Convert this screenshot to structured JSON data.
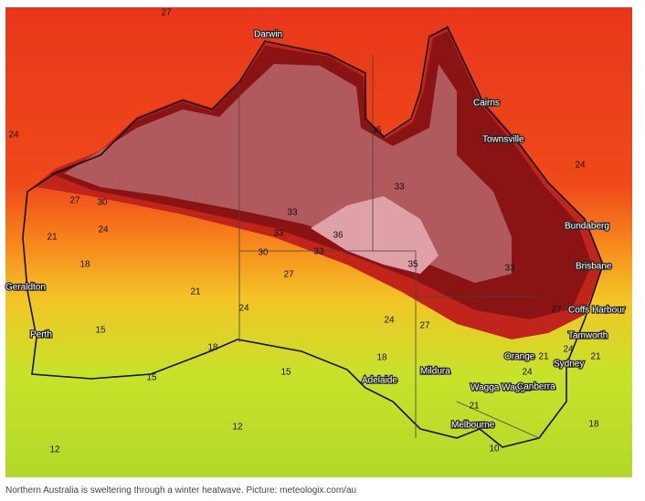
{
  "cities": [
    "Darwin",
    "Cairns",
    "Townsville",
    "Bundaberg",
    "Brisbane",
    "Coffs Harbour",
    "Tamworth",
    "Geraldton",
    "Perth",
    "Orange",
    "Sydney",
    "Mildura",
    "Adelaide",
    "Wagga Wagga",
    "Canberra",
    "Melbourne"
  ],
  "contour_labels": [
    27,
    24,
    27,
    30,
    24,
    21,
    18,
    21,
    15,
    18,
    15,
    15,
    12,
    12,
    24,
    27,
    30,
    33,
    36,
    33,
    33,
    35,
    33,
    35,
    33,
    24,
    27,
    27,
    24,
    18,
    21,
    24,
    21,
    18,
    21,
    24,
    10
  ],
  "caption": "Northern Australia is sweltering through a winter heatwave. Picture: meteologix.com/au"
}
